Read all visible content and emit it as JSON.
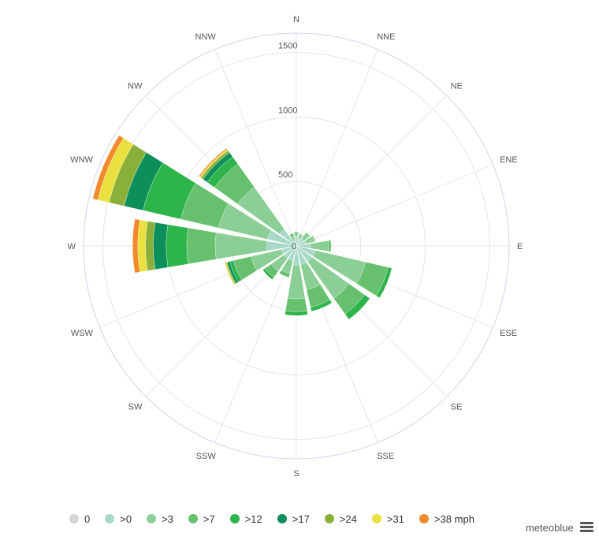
{
  "chart_data": {
    "type": "windrose",
    "directions": [
      "N",
      "NNE",
      "NE",
      "ENE",
      "E",
      "ESE",
      "SE",
      "SSE",
      "S",
      "SSW",
      "SW",
      "WSW",
      "W",
      "WNW",
      "NW",
      "NNW"
    ],
    "radial_ticks": [
      0,
      500,
      1000,
      1500
    ],
    "radial_max": 1650,
    "speed_bins": [
      ">0",
      ">3",
      ">7",
      ">12",
      ">17",
      ">24",
      ">31",
      ">38 mph"
    ],
    "series": [
      {
        "direction": "N",
        "values": [
          80,
          30,
          0,
          0,
          0,
          0,
          0,
          0
        ]
      },
      {
        "direction": "NNE",
        "values": [
          60,
          25,
          10,
          0,
          0,
          0,
          0,
          0
        ]
      },
      {
        "direction": "NE",
        "values": [
          70,
          50,
          10,
          0,
          0,
          0,
          0,
          0
        ]
      },
      {
        "direction": "ENE",
        "values": [
          80,
          60,
          10,
          0,
          0,
          0,
          0,
          0
        ]
      },
      {
        "direction": "E",
        "values": [
          110,
          140,
          20,
          0,
          0,
          0,
          0,
          0
        ]
      },
      {
        "direction": "ESE",
        "values": [
          150,
          400,
          180,
          30,
          0,
          0,
          0,
          0
        ]
      },
      {
        "direction": "SE",
        "values": [
          150,
          350,
          150,
          50,
          0,
          0,
          0,
          0
        ]
      },
      {
        "direction": "SSE",
        "values": [
          150,
          200,
          140,
          30,
          0,
          0,
          0,
          0
        ]
      },
      {
        "direction": "S",
        "values": [
          150,
          260,
          100,
          30,
          0,
          0,
          0,
          0
        ]
      },
      {
        "direction": "SSW",
        "values": [
          120,
          100,
          30,
          0,
          0,
          0,
          0,
          0
        ]
      },
      {
        "direction": "SW",
        "values": [
          120,
          120,
          60,
          20,
          0,
          0,
          0,
          0
        ]
      },
      {
        "direction": "WSW",
        "values": [
          120,
          240,
          140,
          30,
          20,
          10,
          10,
          0
        ]
      },
      {
        "direction": "W",
        "values": [
          230,
          400,
          220,
          160,
          100,
          60,
          60,
          40
        ]
      },
      {
        "direction": "WNW",
        "values": [
          230,
          390,
          300,
          300,
          150,
          120,
          90,
          40
        ]
      },
      {
        "direction": "NW",
        "values": [
          160,
          400,
          220,
          70,
          40,
          20,
          10,
          10
        ]
      },
      {
        "direction": "NNW",
        "values": [
          40,
          40,
          20,
          0,
          0,
          0,
          0,
          0
        ]
      }
    ],
    "grid": true,
    "legend_position": "bottom"
  },
  "legend": {
    "items": [
      {
        "label": "0",
        "color": "#d8d4d6"
      },
      {
        "label": ">0",
        "color": "#a8d8c8"
      },
      {
        "label": ">3",
        "color": "#8ccf96"
      },
      {
        "label": ">7",
        "color": "#66c06e"
      },
      {
        "label": ">12",
        "color": "#2db44a"
      },
      {
        "label": ">17",
        "color": "#0c8f5a"
      },
      {
        "label": ">24",
        "color": "#8ab03b"
      },
      {
        "label": ">31",
        "color": "#eae040"
      },
      {
        "label": ">38 mph",
        "color": "#f08a2c"
      }
    ]
  },
  "brand": "meteoblue"
}
